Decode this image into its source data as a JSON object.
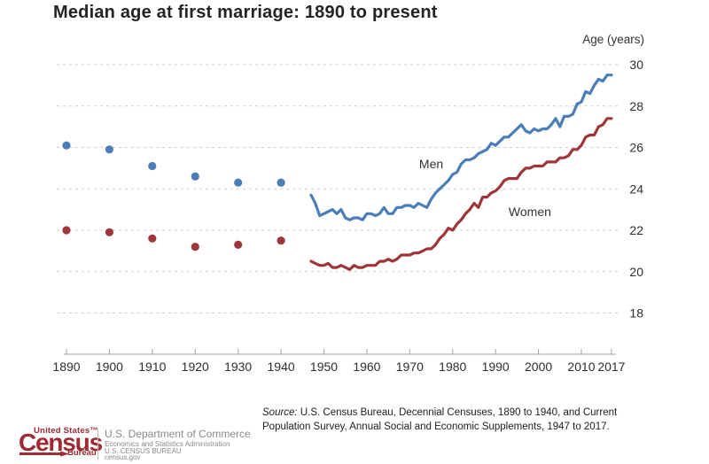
{
  "chart_data": {
    "type": "line",
    "title": "Median age at first marriage: 1890 to present",
    "y_axis_title": "Age (years)",
    "x_tick_years": [
      1890,
      1900,
      1910,
      1920,
      1930,
      1940,
      1950,
      1960,
      1970,
      1980,
      1990,
      2000,
      2010,
      2017
    ],
    "x_tick_labels": [
      "1890",
      "1900",
      "1910",
      "1920",
      "1930",
      "1940",
      "1950",
      "1960",
      "1970",
      "1980",
      "1990",
      "2000",
      "2010",
      "2017"
    ],
    "y_tick_values": [
      30,
      28,
      26,
      24,
      22,
      20,
      18
    ],
    "y_tick_labels": [
      "30",
      "28",
      "26",
      "24",
      "22",
      "20",
      "18"
    ],
    "x_range_years": [
      1890,
      2017
    ],
    "y_axis_baseline": 16,
    "grid": "dashed-horizontal",
    "legend": "inline-annotations",
    "series": [
      {
        "name": "Men (Decennial Censuses 1890-1940)",
        "display_label": "men",
        "style": "dots",
        "color": "#4b7db8",
        "x": [
          1890,
          1900,
          1910,
          1920,
          1930,
          1940
        ],
        "values": [
          26.1,
          25.9,
          25.1,
          24.6,
          24.3,
          24.3
        ]
      },
      {
        "name": "Women (Decennial Censuses 1890-1940)",
        "display_label": "women",
        "style": "dots",
        "color": "#9e3639",
        "x": [
          1890,
          1900,
          1910,
          1920,
          1930,
          1940
        ],
        "values": [
          22.0,
          21.9,
          21.6,
          21.2,
          21.3,
          21.5
        ]
      },
      {
        "name": "Men (Current Population Survey 1947-2017)",
        "display_label": "men",
        "style": "line",
        "color": "#4b7db8",
        "x_start": 1947,
        "x_step": 1,
        "values": [
          23.7,
          23.3,
          22.7,
          22.8,
          22.9,
          23.0,
          22.8,
          23.0,
          22.6,
          22.5,
          22.6,
          22.6,
          22.5,
          22.8,
          22.8,
          22.7,
          22.8,
          23.1,
          22.8,
          22.8,
          23.1,
          23.1,
          23.2,
          23.2,
          23.1,
          23.3,
          23.2,
          23.1,
          23.5,
          23.8,
          24.0,
          24.2,
          24.4,
          24.7,
          24.8,
          25.2,
          25.4,
          25.4,
          25.5,
          25.7,
          25.8,
          25.9,
          26.2,
          26.1,
          26.3,
          26.5,
          26.5,
          26.7,
          26.9,
          27.1,
          26.8,
          26.7,
          26.9,
          26.8,
          26.9,
          26.9,
          27.1,
          27.4,
          27.0,
          27.5,
          27.5,
          27.6,
          28.1,
          28.2,
          28.7,
          28.6,
          29.0,
          29.3,
          29.2,
          29.5,
          29.5
        ]
      },
      {
        "name": "Women (Current Population Survey 1947-2017)",
        "display_label": "women",
        "style": "line",
        "color": "#9e3639",
        "x_start": 1947,
        "x_step": 1,
        "values": [
          20.5,
          20.4,
          20.3,
          20.3,
          20.4,
          20.2,
          20.2,
          20.3,
          20.2,
          20.1,
          20.3,
          20.2,
          20.2,
          20.3,
          20.3,
          20.3,
          20.5,
          20.5,
          20.6,
          20.5,
          20.6,
          20.8,
          20.8,
          20.8,
          20.9,
          20.9,
          21.0,
          21.1,
          21.1,
          21.3,
          21.6,
          21.8,
          22.1,
          22.0,
          22.3,
          22.5,
          22.8,
          23.0,
          23.3,
          23.1,
          23.6,
          23.6,
          23.8,
          23.9,
          24.1,
          24.4,
          24.5,
          24.5,
          24.5,
          24.8,
          25.0,
          25.0,
          25.1,
          25.1,
          25.1,
          25.3,
          25.3,
          25.3,
          25.5,
          25.5,
          25.6,
          25.9,
          25.9,
          26.1,
          26.5,
          26.6,
          26.6,
          27.0,
          27.1,
          27.4,
          27.4
        ]
      }
    ],
    "annotations": [
      {
        "text": "Men",
        "x": 1975,
        "y": 25.2
      },
      {
        "text": "Women",
        "x": 1998,
        "y": 22.9
      }
    ]
  },
  "footer": {
    "source_label": "Source:",
    "source_text": "U.S. Census Bureau, Decennial Censuses, 1890 to 1940, and Current Population Survey, Annual Social and Economic Supplements, 1947 to 2017.",
    "logo": {
      "united_states": "United States™",
      "census": "Census",
      "bureau": "Bureau",
      "commerce_line1": "U.S. Department of Commerce",
      "commerce_line2": "Economics and Statistics Administration",
      "commerce_line3": "U.S. CENSUS BUREAU",
      "commerce_line4": "census.gov"
    }
  },
  "colors": {
    "men": "#4b7db8",
    "women": "#9e3639",
    "logo_red": "#9e2a32",
    "commerce_gray": "#8a8a8a",
    "grid": "#cccccc",
    "axis": "#a3a3a3",
    "tick_text": "#2e2e2e",
    "annotation_text": "#333333"
  }
}
